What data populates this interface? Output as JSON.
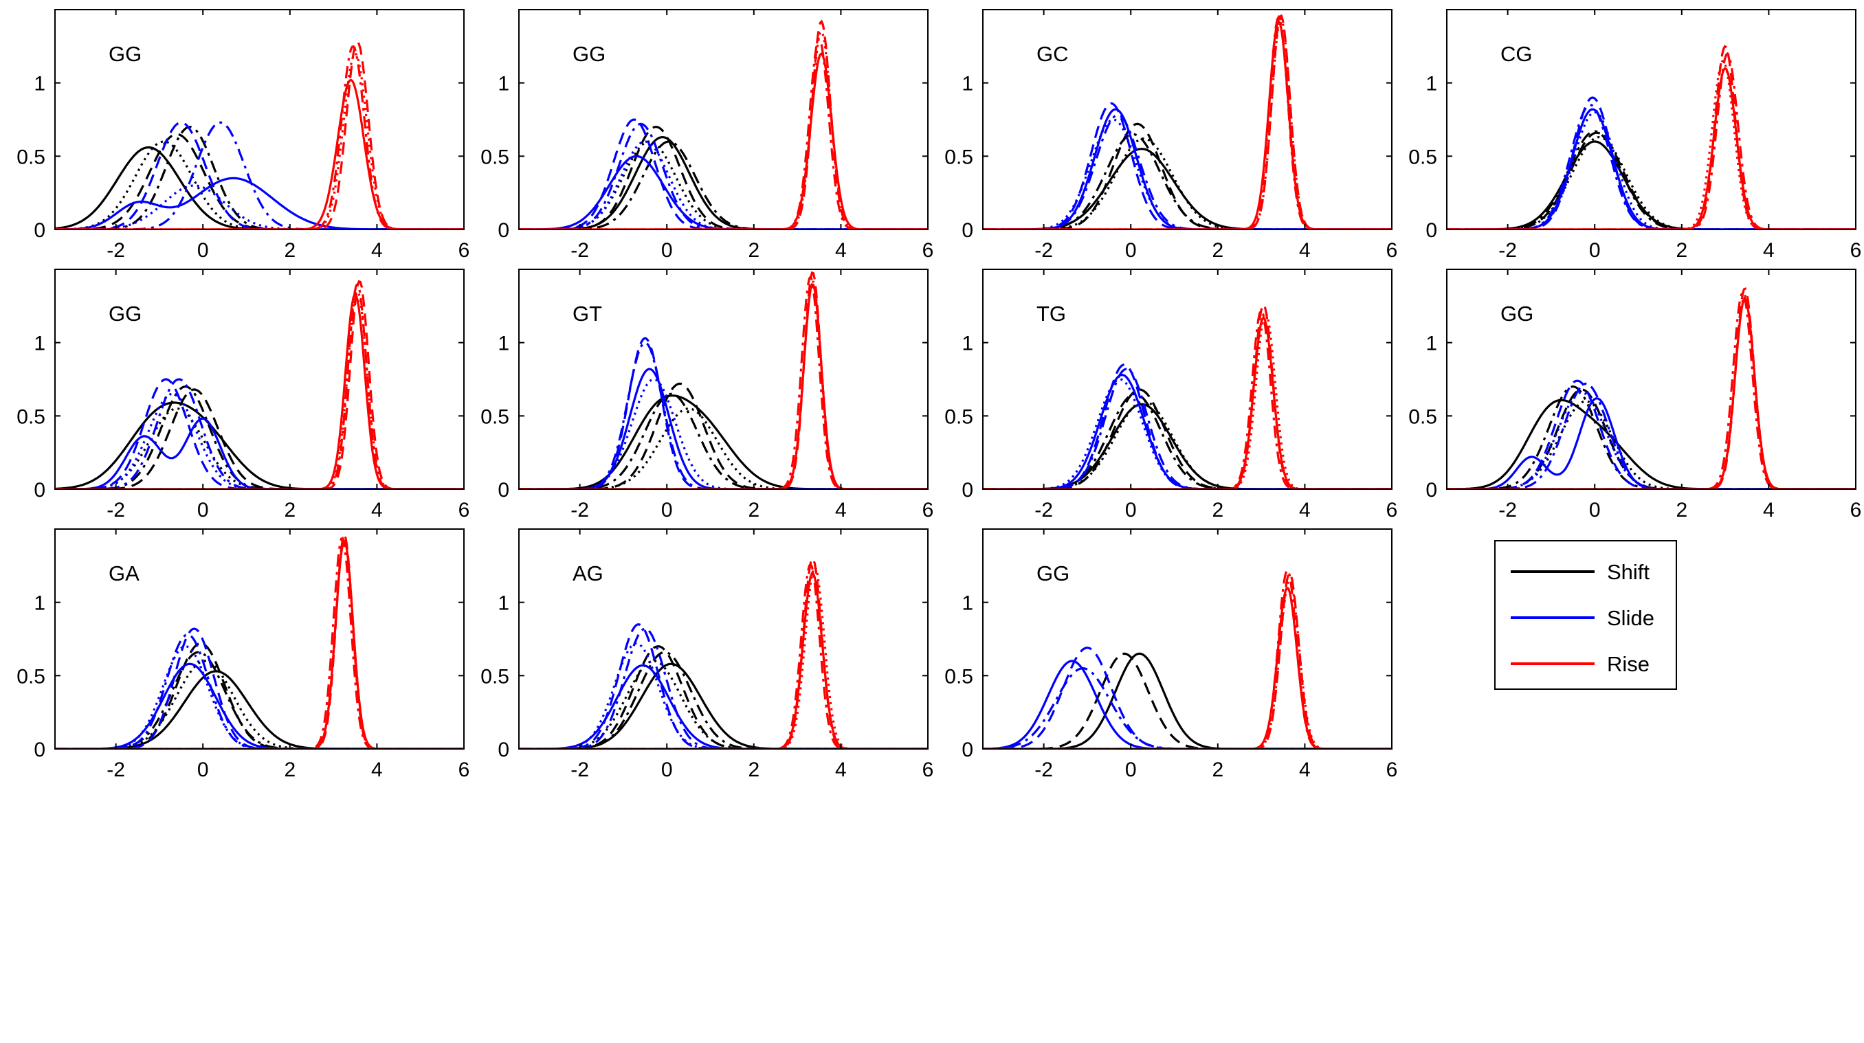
{
  "chart_data": {
    "type": "line",
    "description_of_axes": "each panel: x axis from -3.4 to 6, y axis from 0 to 1.5",
    "xlim": [
      -3.4,
      6
    ],
    "ylim": [
      0,
      1.5
    ],
    "xticks": [
      -2,
      0,
      2,
      4,
      6
    ],
    "yticks": [
      0,
      0.5,
      1
    ],
    "grid": false,
    "legend": {
      "position": "right, below last panel of first column group",
      "entries": [
        {
          "name": "Shift",
          "color": "#000000"
        },
        {
          "name": "Slide",
          "color": "#0000ff"
        },
        {
          "name": "Rise",
          "color": "#ff0000"
        }
      ]
    },
    "line_styles": [
      "solid",
      "dashed",
      "dashdot",
      "dotted"
    ],
    "panels": [
      {
        "label": "GG",
        "shift": [
          [
            -1.25,
            0.56,
            0.72
          ],
          [
            -0.6,
            0.65,
            0.62
          ],
          [
            -0.3,
            0.7,
            0.55
          ],
          [
            -0.9,
            0.6,
            0.65
          ]
        ],
        "slide": [
          [
            -1.5,
            0.17,
            0.5,
            0.7,
            0.35,
            0.9
          ],
          [
            -0.5,
            0.73,
            0.55
          ],
          [
            0.4,
            0.73,
            0.55
          ],
          [
            -0.2,
            0.3,
            0.7
          ]
        ],
        "rise": [
          [
            3.4,
            1.02,
            0.3
          ],
          [
            3.55,
            1.28,
            0.25
          ],
          [
            3.45,
            1.25,
            0.26
          ],
          [
            3.5,
            1.2,
            0.27
          ]
        ]
      },
      {
        "label": "GG",
        "shift": [
          [
            -0.1,
            0.63,
            0.62
          ],
          [
            -0.25,
            0.7,
            0.55
          ],
          [
            0.05,
            0.6,
            0.6
          ],
          [
            -0.4,
            0.6,
            0.6
          ]
        ],
        "slide": [
          [
            -0.7,
            0.5,
            0.62
          ],
          [
            -0.75,
            0.75,
            0.48
          ],
          [
            -0.6,
            0.72,
            0.5
          ],
          [
            -0.5,
            0.6,
            0.55
          ]
        ],
        "rise": [
          [
            3.55,
            1.2,
            0.24
          ],
          [
            3.55,
            1.42,
            0.21
          ],
          [
            3.5,
            1.3,
            0.22
          ],
          [
            3.55,
            1.35,
            0.22
          ]
        ]
      },
      {
        "label": "GC",
        "shift": [
          [
            0.25,
            0.55,
            0.73
          ],
          [
            0.15,
            0.72,
            0.55
          ],
          [
            0.05,
            0.65,
            0.62
          ],
          [
            0.3,
            0.62,
            0.65
          ]
        ],
        "slide": [
          [
            -0.35,
            0.82,
            0.48
          ],
          [
            -0.45,
            0.86,
            0.46
          ],
          [
            -0.3,
            0.78,
            0.5
          ],
          [
            -0.4,
            0.75,
            0.52
          ]
        ],
        "rise": [
          [
            3.4,
            1.42,
            0.22
          ],
          [
            3.45,
            1.46,
            0.21
          ],
          [
            3.4,
            1.45,
            0.21
          ],
          [
            3.45,
            1.44,
            0.21
          ]
        ]
      },
      {
        "label": "CG",
        "shift": [
          [
            0.0,
            0.6,
            0.65
          ],
          [
            0.05,
            0.66,
            0.6
          ],
          [
            0.0,
            0.67,
            0.6
          ],
          [
            0.1,
            0.63,
            0.62
          ]
        ],
        "slide": [
          [
            -0.05,
            0.82,
            0.46
          ],
          [
            -0.05,
            0.9,
            0.43
          ],
          [
            -0.1,
            0.85,
            0.45
          ],
          [
            0.0,
            0.8,
            0.48
          ]
        ],
        "rise": [
          [
            3.0,
            1.1,
            0.25
          ],
          [
            3.0,
            1.25,
            0.23
          ],
          [
            3.05,
            1.2,
            0.24
          ],
          [
            2.95,
            1.15,
            0.25
          ]
        ]
      },
      {
        "label": "GG",
        "shift": [
          [
            -1.0,
            0.47,
            0.75,
            0.1,
            0.3,
            0.7
          ],
          [
            -0.2,
            0.68,
            0.55
          ],
          [
            -0.4,
            0.7,
            0.55
          ],
          [
            -0.6,
            0.55,
            0.62
          ]
        ],
        "slide": [
          [
            -1.35,
            0.36,
            0.42,
            0.0,
            0.48,
            0.4
          ],
          [
            -0.85,
            0.75,
            0.5
          ],
          [
            -0.55,
            0.75,
            0.5
          ],
          [
            -0.7,
            0.65,
            0.55
          ]
        ],
        "rise": [
          [
            3.5,
            1.33,
            0.22
          ],
          [
            3.6,
            1.42,
            0.21
          ],
          [
            3.55,
            1.4,
            0.21
          ],
          [
            3.55,
            1.35,
            0.22
          ]
        ]
      },
      {
        "label": "GT",
        "shift": [
          [
            0.7,
            0.46,
            0.75,
            -0.3,
            0.38,
            0.6
          ],
          [
            0.3,
            0.72,
            0.55
          ],
          [
            0.1,
            0.65,
            0.6
          ],
          [
            0.5,
            0.55,
            0.65
          ]
        ],
        "slide": [
          [
            -0.4,
            0.82,
            0.45
          ],
          [
            -0.5,
            1.03,
            0.38
          ],
          [
            -0.5,
            1.0,
            0.4
          ],
          [
            -0.3,
            0.75,
            0.5
          ]
        ],
        "rise": [
          [
            3.35,
            1.4,
            0.2
          ],
          [
            3.35,
            1.48,
            0.19
          ],
          [
            3.3,
            1.45,
            0.2
          ],
          [
            3.35,
            1.42,
            0.2
          ]
        ]
      },
      {
        "label": "TG",
        "shift": [
          [
            0.25,
            0.58,
            0.68
          ],
          [
            0.2,
            0.68,
            0.58
          ],
          [
            0.1,
            0.65,
            0.6
          ],
          [
            0.3,
            0.6,
            0.65
          ]
        ],
        "slide": [
          [
            -0.2,
            0.78,
            0.5
          ],
          [
            -0.15,
            0.85,
            0.46
          ],
          [
            -0.1,
            0.82,
            0.48
          ],
          [
            -0.25,
            0.75,
            0.52
          ]
        ],
        "rise": [
          [
            3.05,
            1.17,
            0.22
          ],
          [
            3.05,
            1.26,
            0.21
          ],
          [
            3.0,
            1.22,
            0.21
          ],
          [
            3.1,
            1.2,
            0.22
          ]
        ]
      },
      {
        "label": "GG",
        "shift": [
          [
            -1.0,
            0.48,
            0.6,
            0.1,
            0.35,
            0.7
          ],
          [
            -0.3,
            0.68,
            0.55
          ],
          [
            -0.5,
            0.7,
            0.55
          ],
          [
            -0.2,
            0.6,
            0.6
          ]
        ],
        "slide": [
          [
            -1.45,
            0.22,
            0.35,
            0.05,
            0.62,
            0.4
          ],
          [
            -0.4,
            0.74,
            0.5
          ],
          [
            -0.2,
            0.72,
            0.5
          ],
          [
            -0.3,
            0.66,
            0.55
          ]
        ],
        "rise": [
          [
            3.45,
            1.3,
            0.22
          ],
          [
            3.45,
            1.37,
            0.21
          ],
          [
            3.4,
            1.34,
            0.22
          ],
          [
            3.45,
            1.32,
            0.22
          ]
        ]
      },
      {
        "label": "GA",
        "shift": [
          [
            0.3,
            0.53,
            0.72
          ],
          [
            -0.05,
            0.72,
            0.55
          ],
          [
            -0.1,
            0.66,
            0.6
          ],
          [
            0.05,
            0.6,
            0.65
          ]
        ],
        "slide": [
          [
            -0.3,
            0.58,
            0.6
          ],
          [
            -0.2,
            0.82,
            0.45
          ],
          [
            -0.35,
            0.78,
            0.48
          ],
          [
            -0.4,
            0.7,
            0.52
          ]
        ],
        "rise": [
          [
            3.25,
            1.42,
            0.2
          ],
          [
            3.25,
            1.46,
            0.19
          ],
          [
            3.2,
            1.44,
            0.2
          ],
          [
            3.25,
            1.43,
            0.2
          ]
        ]
      },
      {
        "label": "AG",
        "shift": [
          [
            0.1,
            0.58,
            0.68
          ],
          [
            -0.2,
            0.7,
            0.56
          ],
          [
            -0.05,
            0.66,
            0.6
          ],
          [
            -0.3,
            0.6,
            0.62
          ]
        ],
        "slide": [
          [
            -0.55,
            0.57,
            0.6
          ],
          [
            -0.65,
            0.85,
            0.45
          ],
          [
            -0.5,
            0.82,
            0.47
          ],
          [
            -0.7,
            0.72,
            0.5
          ]
        ],
        "rise": [
          [
            3.35,
            1.2,
            0.22
          ],
          [
            3.35,
            1.3,
            0.21
          ],
          [
            3.3,
            1.26,
            0.21
          ],
          [
            3.4,
            1.24,
            0.22
          ]
        ]
      },
      {
        "label": "GG",
        "shift": [
          [
            0.2,
            0.65,
            0.55
          ],
          [
            -0.15,
            0.65,
            0.55
          ]
        ],
        "slide": [
          [
            -1.35,
            0.6,
            0.55
          ],
          [
            -1.0,
            0.69,
            0.55
          ],
          [
            -1.1,
            0.55,
            0.62
          ]
        ],
        "rise": [
          [
            3.6,
            1.1,
            0.22
          ],
          [
            3.65,
            1.2,
            0.21
          ],
          [
            3.6,
            1.22,
            0.21
          ],
          [
            3.65,
            1.15,
            0.22
          ]
        ]
      }
    ]
  }
}
